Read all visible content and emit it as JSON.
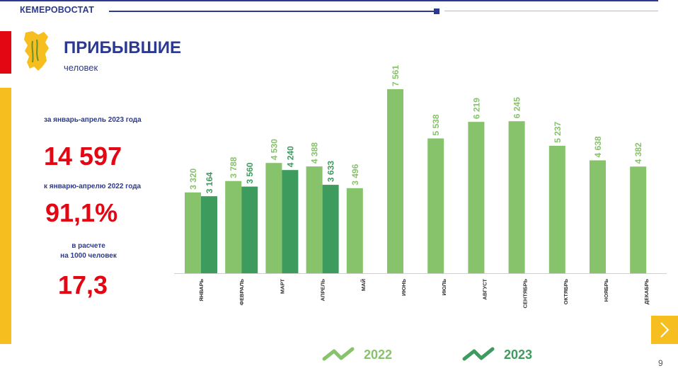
{
  "header": {
    "brand": "КЕМЕРОВОСТАТ"
  },
  "title": "ПРИБЫВШИЕ",
  "subtitle": "человек",
  "stats": {
    "period_label": "за январь-апрель  2023 года",
    "total_value": "14 597",
    "compare_label": "к январю-апрелю  2022 года",
    "compare_value": "91,1%",
    "per1000_label_line1": "в расчете",
    "per1000_label_line2": "на 1000 человек",
    "per1000_value": "17,3"
  },
  "colors": {
    "brand_blue": "#2b3990",
    "accent_red": "#e30613",
    "accent_yellow": "#f6bf1f",
    "series_2022": "#87c36b",
    "series_2023": "#3e9b5e"
  },
  "page_number": "9",
  "chart_data": {
    "type": "bar",
    "categories": [
      "ЯНВАРЬ",
      "ФЕВРАЛЬ",
      "МАРТ",
      "АПРЕЛЬ",
      "МАЙ",
      "ИЮНЬ",
      "ИЮЛЬ",
      "АВГУСТ",
      "СЕНТЯБРЬ",
      "ОКТЯБРЬ",
      "НОЯБРЬ",
      "ДЕКАБРЬ"
    ],
    "series": [
      {
        "name": "2022",
        "color": "#87c36b",
        "values": [
          3320,
          3788,
          4530,
          4388,
          3496,
          7561,
          5538,
          6219,
          6245,
          5237,
          4638,
          4382
        ],
        "labels": [
          "3 320",
          "3 788",
          "4 530",
          "4 388",
          "3 496",
          "7 561",
          "5 538",
          "6 219",
          "6 245",
          "5 237",
          "4 638",
          "4 382"
        ]
      },
      {
        "name": "2023",
        "color": "#3e9b5e",
        "values": [
          3164,
          3560,
          4240,
          3633,
          null,
          null,
          null,
          null,
          null,
          null,
          null,
          null
        ],
        "labels": [
          "3 164",
          "3 560",
          "4 240",
          "3 633",
          "",
          "",
          "",
          "",
          "",
          "",
          "",
          ""
        ]
      }
    ],
    "ylim": [
      0,
      7561
    ],
    "grid": false,
    "legend_position": "bottom"
  }
}
